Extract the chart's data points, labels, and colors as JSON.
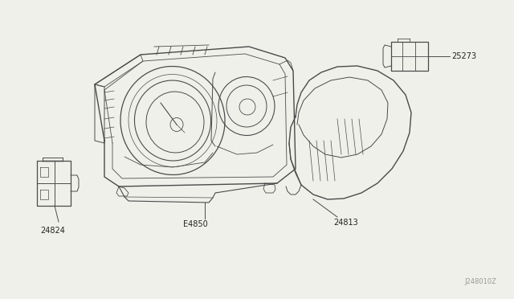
{
  "bg_color": "#f0f0eb",
  "line_color": "#4a4a4a",
  "label_color": "#222222",
  "watermark": "J248010Z",
  "figsize": [
    6.4,
    3.72
  ],
  "dpi": 100
}
